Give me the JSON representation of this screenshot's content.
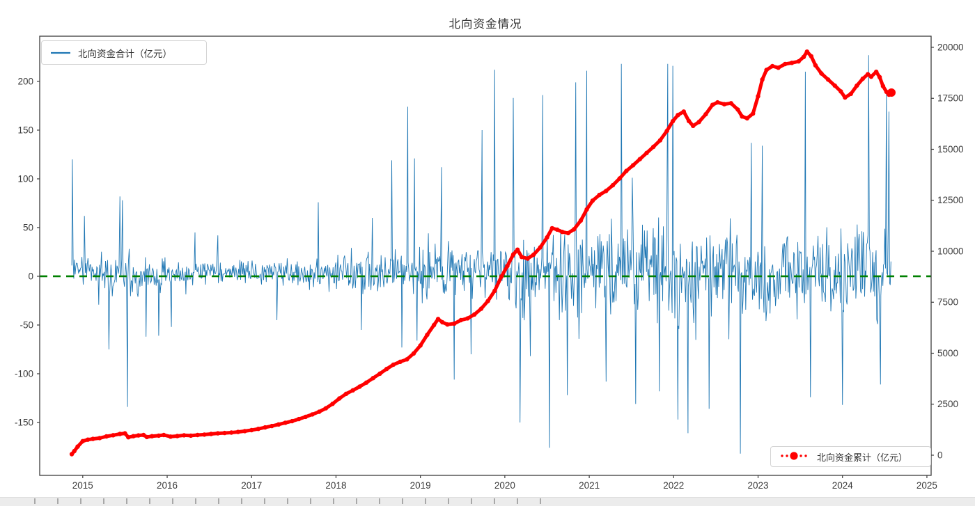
{
  "chart_data": {
    "type": "line",
    "title": "北向资金情况",
    "series": [
      {
        "name": "北向资金合计（亿元）",
        "axis": "left",
        "color": "#1f77b4",
        "style": "solid-thin"
      },
      {
        "name": "北向资金累计（亿元）",
        "axis": "right",
        "color": "#ff0000",
        "style": "dashdot-dots"
      }
    ],
    "reference_line": {
      "value": 0,
      "axis": "left",
      "color": "#008000",
      "style": "dashed"
    },
    "xlim": [
      2014.49,
      2025.05
    ],
    "ylim_left": [
      -204.3,
      246.4
    ],
    "ylim_right": [
      -990,
      20546
    ],
    "x_ticks": [
      2015,
      2016,
      2017,
      2018,
      2019,
      2020,
      2021,
      2022,
      2023,
      2024,
      2025
    ],
    "y_left_ticks": [
      -150,
      -100,
      -50,
      0,
      50,
      100,
      150,
      200
    ],
    "y_right_ticks": [
      0,
      2500,
      5000,
      7500,
      10000,
      12500,
      15000,
      17500,
      20000
    ],
    "grid": false,
    "legend_positions": {
      "total": "upper-left",
      "cumulative": "lower-right"
    },
    "cumulative_points": [
      [
        2014.87,
        50
      ],
      [
        2014.9,
        200
      ],
      [
        2014.94,
        420
      ],
      [
        2015.0,
        690
      ],
      [
        2015.06,
        760
      ],
      [
        2015.12,
        800
      ],
      [
        2015.2,
        840
      ],
      [
        2015.28,
        920
      ],
      [
        2015.36,
        980
      ],
      [
        2015.44,
        1040
      ],
      [
        2015.5,
        1070
      ],
      [
        2015.54,
        880
      ],
      [
        2015.6,
        930
      ],
      [
        2015.66,
        970
      ],
      [
        2015.72,
        990
      ],
      [
        2015.76,
        890
      ],
      [
        2015.82,
        930
      ],
      [
        2015.9,
        960
      ],
      [
        2015.96,
        990
      ],
      [
        2016.04,
        910
      ],
      [
        2016.12,
        940
      ],
      [
        2016.2,
        975
      ],
      [
        2016.28,
        960
      ],
      [
        2016.36,
        990
      ],
      [
        2016.44,
        1010
      ],
      [
        2016.52,
        1040
      ],
      [
        2016.6,
        1070
      ],
      [
        2016.68,
        1090
      ],
      [
        2016.76,
        1110
      ],
      [
        2016.84,
        1140
      ],
      [
        2016.92,
        1180
      ],
      [
        2017.0,
        1230
      ],
      [
        2017.08,
        1290
      ],
      [
        2017.16,
        1360
      ],
      [
        2017.24,
        1430
      ],
      [
        2017.32,
        1510
      ],
      [
        2017.4,
        1590
      ],
      [
        2017.48,
        1670
      ],
      [
        2017.56,
        1770
      ],
      [
        2017.64,
        1880
      ],
      [
        2017.72,
        2000
      ],
      [
        2017.8,
        2130
      ],
      [
        2017.88,
        2300
      ],
      [
        2017.96,
        2520
      ],
      [
        2018.04,
        2780
      ],
      [
        2018.12,
        3010
      ],
      [
        2018.2,
        3180
      ],
      [
        2018.28,
        3360
      ],
      [
        2018.36,
        3560
      ],
      [
        2018.44,
        3780
      ],
      [
        2018.52,
        4000
      ],
      [
        2018.6,
        4230
      ],
      [
        2018.68,
        4440
      ],
      [
        2018.76,
        4580
      ],
      [
        2018.84,
        4700
      ],
      [
        2018.92,
        4990
      ],
      [
        2019.0,
        5380
      ],
      [
        2019.08,
        5900
      ],
      [
        2019.16,
        6380
      ],
      [
        2019.21,
        6680
      ],
      [
        2019.26,
        6520
      ],
      [
        2019.32,
        6410
      ],
      [
        2019.4,
        6450
      ],
      [
        2019.48,
        6620
      ],
      [
        2019.56,
        6710
      ],
      [
        2019.64,
        6900
      ],
      [
        2019.72,
        7180
      ],
      [
        2019.8,
        7560
      ],
      [
        2019.88,
        8060
      ],
      [
        2019.96,
        8760
      ],
      [
        2020.03,
        9280
      ],
      [
        2020.1,
        9840
      ],
      [
        2020.15,
        10080
      ],
      [
        2020.2,
        9720
      ],
      [
        2020.27,
        9640
      ],
      [
        2020.34,
        9830
      ],
      [
        2020.42,
        10190
      ],
      [
        2020.5,
        10680
      ],
      [
        2020.56,
        11130
      ],
      [
        2020.62,
        11060
      ],
      [
        2020.68,
        10950
      ],
      [
        2020.75,
        10890
      ],
      [
        2020.82,
        11080
      ],
      [
        2020.9,
        11510
      ],
      [
        2020.97,
        12050
      ],
      [
        2021.04,
        12480
      ],
      [
        2021.12,
        12760
      ],
      [
        2021.2,
        12960
      ],
      [
        2021.28,
        13240
      ],
      [
        2021.36,
        13570
      ],
      [
        2021.44,
        13940
      ],
      [
        2021.52,
        14220
      ],
      [
        2021.6,
        14520
      ],
      [
        2021.68,
        14820
      ],
      [
        2021.76,
        15120
      ],
      [
        2021.84,
        15440
      ],
      [
        2021.92,
        15900
      ],
      [
        2021.99,
        16380
      ],
      [
        2022.05,
        16680
      ],
      [
        2022.12,
        16850
      ],
      [
        2022.18,
        16390
      ],
      [
        2022.23,
        16150
      ],
      [
        2022.3,
        16340
      ],
      [
        2022.38,
        16720
      ],
      [
        2022.46,
        17180
      ],
      [
        2022.52,
        17300
      ],
      [
        2022.6,
        17210
      ],
      [
        2022.68,
        17260
      ],
      [
        2022.76,
        16950
      ],
      [
        2022.81,
        16610
      ],
      [
        2022.87,
        16520
      ],
      [
        2022.94,
        16750
      ],
      [
        2023.0,
        17600
      ],
      [
        2023.05,
        18420
      ],
      [
        2023.1,
        18890
      ],
      [
        2023.17,
        19080
      ],
      [
        2023.24,
        19000
      ],
      [
        2023.32,
        19180
      ],
      [
        2023.4,
        19240
      ],
      [
        2023.48,
        19310
      ],
      [
        2023.54,
        19530
      ],
      [
        2023.58,
        19790
      ],
      [
        2023.63,
        19560
      ],
      [
        2023.68,
        19120
      ],
      [
        2023.75,
        18720
      ],
      [
        2023.83,
        18420
      ],
      [
        2023.91,
        18120
      ],
      [
        2023.98,
        17840
      ],
      [
        2024.03,
        17540
      ],
      [
        2024.1,
        17720
      ],
      [
        2024.17,
        18120
      ],
      [
        2024.24,
        18460
      ],
      [
        2024.3,
        18680
      ],
      [
        2024.34,
        18560
      ],
      [
        2024.4,
        18800
      ],
      [
        2024.44,
        18540
      ],
      [
        2024.48,
        18100
      ],
      [
        2024.52,
        17820
      ],
      [
        2024.55,
        17680
      ],
      [
        2024.58,
        17780
      ]
    ],
    "daily_flow": {
      "x_start": 2014.87,
      "x_end": 2024.58,
      "step": 0.008,
      "seed": 20140871,
      "envelope": [
        {
          "from": 2014.87,
          "to": 2015.0,
          "sigma": 14,
          "mean": 10
        },
        {
          "from": 2015.0,
          "to": 2016.0,
          "sigma": 19,
          "mean": 2
        },
        {
          "from": 2016.0,
          "to": 2017.0,
          "sigma": 11,
          "mean": 3
        },
        {
          "from": 2017.0,
          "to": 2018.0,
          "sigma": 12,
          "mean": 5
        },
        {
          "from": 2018.0,
          "to": 2019.0,
          "sigma": 20,
          "mean": 5
        },
        {
          "from": 2019.0,
          "to": 2020.0,
          "sigma": 28,
          "mean": 6
        },
        {
          "from": 2020.0,
          "to": 2021.0,
          "sigma": 40,
          "mean": 5
        },
        {
          "from": 2021.0,
          "to": 2022.0,
          "sigma": 42,
          "mean": 6
        },
        {
          "from": 2022.0,
          "to": 2023.0,
          "sigma": 44,
          "mean": 0
        },
        {
          "from": 2023.0,
          "to": 2024.0,
          "sigma": 40,
          "mean": -2
        },
        {
          "from": 2024.0,
          "to": 2024.59,
          "sigma": 46,
          "mean": -2
        }
      ],
      "landmark_spikes": [
        [
          2014.877,
          120
        ],
        [
          2015.02,
          62
        ],
        [
          2015.31,
          -75
        ],
        [
          2015.44,
          82
        ],
        [
          2015.47,
          78
        ],
        [
          2015.53,
          -134
        ],
        [
          2015.75,
          -62
        ],
        [
          2015.9,
          -61
        ],
        [
          2016.05,
          -52
        ],
        [
          2016.33,
          45
        ],
        [
          2016.6,
          42
        ],
        [
          2017.3,
          -45
        ],
        [
          2017.79,
          76
        ],
        [
          2018.3,
          -55
        ],
        [
          2018.43,
          60
        ],
        [
          2018.66,
          119
        ],
        [
          2018.78,
          -73
        ],
        [
          2018.85,
          174
        ],
        [
          2018.93,
          121
        ],
        [
          2018.96,
          -66
        ],
        [
          2019.25,
          112
        ],
        [
          2019.4,
          -106
        ],
        [
          2019.6,
          -80
        ],
        [
          2019.73,
          150
        ],
        [
          2019.88,
          212
        ],
        [
          2020.1,
          183
        ],
        [
          2020.18,
          -150
        ],
        [
          2020.45,
          186
        ],
        [
          2020.53,
          -176
        ],
        [
          2020.74,
          -122
        ],
        [
          2020.84,
          199
        ],
        [
          2020.97,
          211
        ],
        [
          2021.2,
          -108
        ],
        [
          2021.38,
          218
        ],
        [
          2021.55,
          -131
        ],
        [
          2021.83,
          -118
        ],
        [
          2021.93,
          218
        ],
        [
          2021.99,
          216
        ],
        [
          2022.05,
          -147
        ],
        [
          2022.17,
          -161
        ],
        [
          2022.42,
          -136
        ],
        [
          2022.79,
          -182
        ],
        [
          2022.92,
          137
        ],
        [
          2023.05,
          134
        ],
        [
          2023.56,
          210
        ],
        [
          2023.62,
          -124
        ],
        [
          2024.0,
          -132
        ],
        [
          2024.31,
          227
        ],
        [
          2024.45,
          -111
        ],
        [
          2024.52,
          191
        ],
        [
          2024.55,
          169
        ]
      ]
    },
    "colors": {
      "total_flow": "#1f77b4",
      "cumulative": "#ff0000",
      "zero_line": "#008000",
      "frame": "#3c3c3c",
      "tick_text": "#3a3a3a"
    }
  }
}
